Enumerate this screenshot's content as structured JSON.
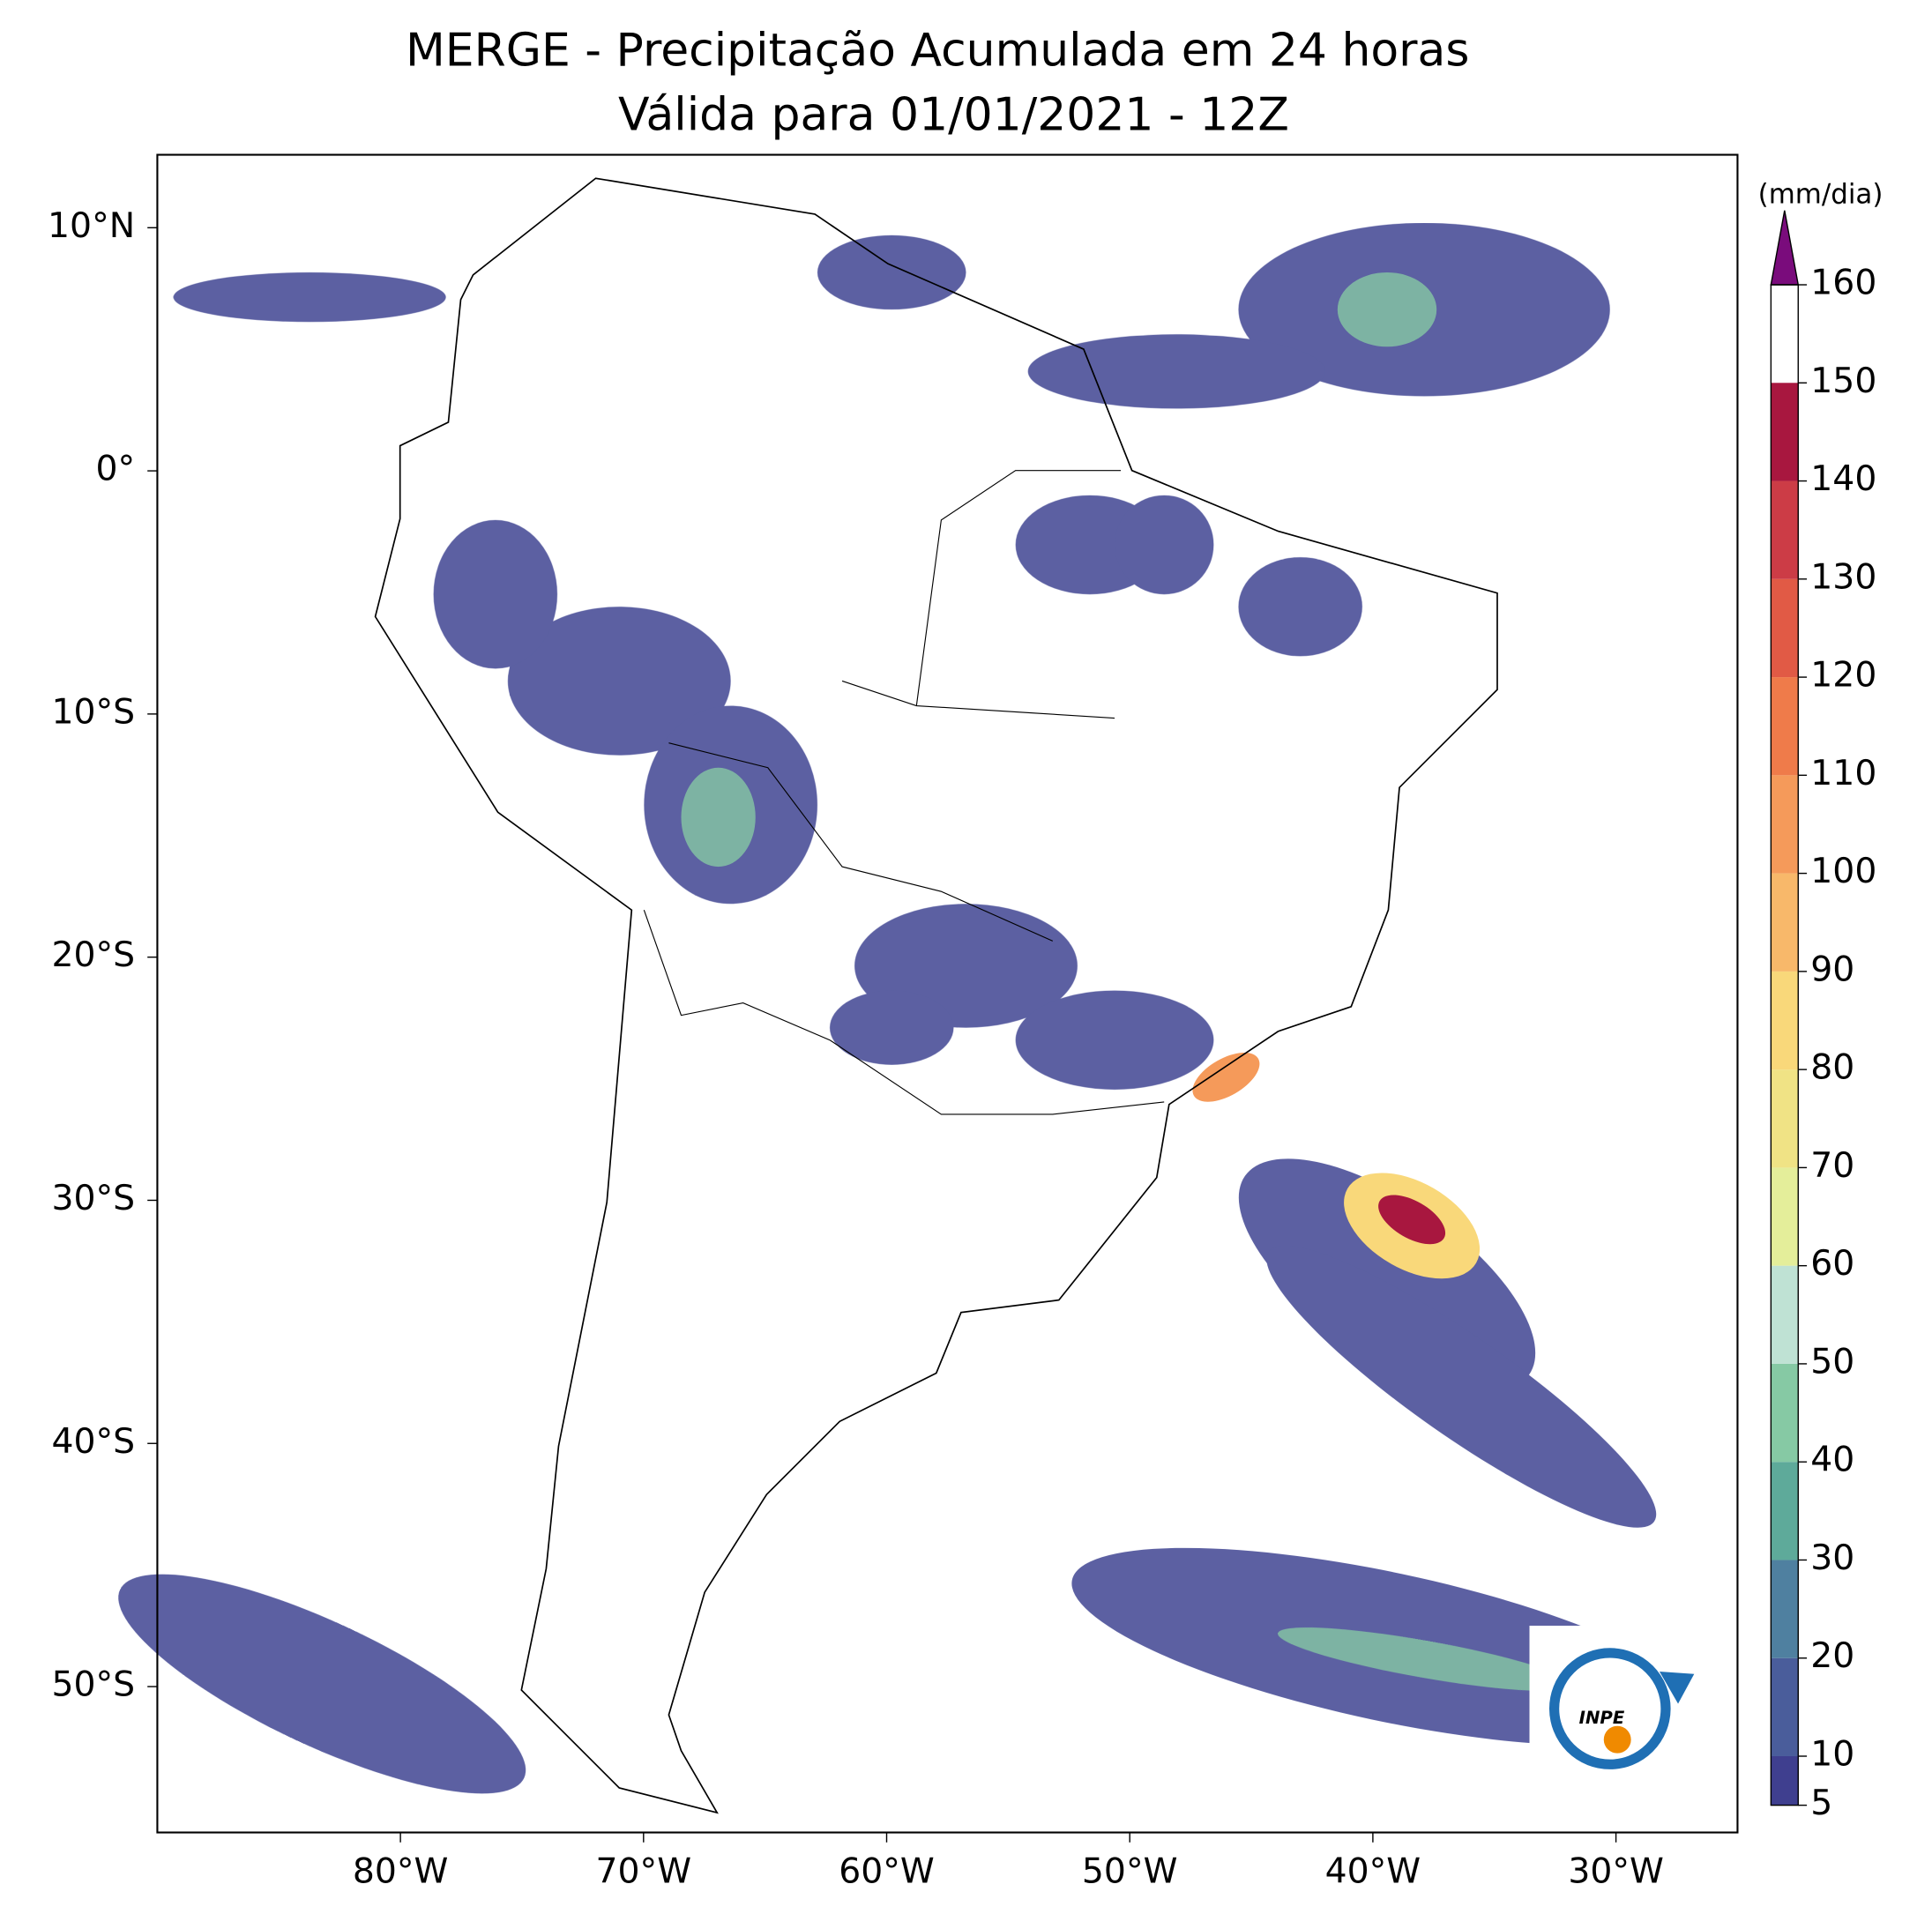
{
  "header": {
    "title": "MERGE - Precipitação Acumulada em 24 horas",
    "subtitle": "Válida para 01/01/2021 - 12Z"
  },
  "map": {
    "xlim": [
      -90,
      -25
    ],
    "ylim": [
      -56,
      13
    ],
    "xticks": [
      {
        "value": -80,
        "label": "80°W"
      },
      {
        "value": -70,
        "label": "70°W"
      },
      {
        "value": -60,
        "label": "60°W"
      },
      {
        "value": -50,
        "label": "50°W"
      },
      {
        "value": -40,
        "label": "40°W"
      },
      {
        "value": -30,
        "label": "30°W"
      }
    ],
    "yticks": [
      {
        "value": 10,
        "label": "10°N"
      },
      {
        "value": 0,
        "label": "0°"
      },
      {
        "value": -10,
        "label": "10°S"
      },
      {
        "value": -20,
        "label": "20°S"
      },
      {
        "value": -30,
        "label": "30°S"
      },
      {
        "value": -40,
        "label": "40°S"
      },
      {
        "value": -50,
        "label": "50°S"
      }
    ]
  },
  "colorbar": {
    "label": "(mm/dia)",
    "ticks": [
      5,
      10,
      20,
      30,
      40,
      50,
      60,
      70,
      80,
      90,
      100,
      110,
      120,
      130,
      140,
      150,
      160
    ],
    "colors": [
      "#3f3f8f",
      "#4a5d9b",
      "#4f80a0",
      "#5eaa9a",
      "#86c9a4",
      "#bfe2d4",
      "#e4ee9a",
      "#f0e385",
      "#f9d87a",
      "#f8b86a",
      "#f59a5a",
      "#ef7b4a",
      "#e15a45",
      "#cc3c46",
      "#a8173f"
    ],
    "extend_color": "#7a0c7c"
  },
  "logo": {
    "text": "INPE"
  }
}
